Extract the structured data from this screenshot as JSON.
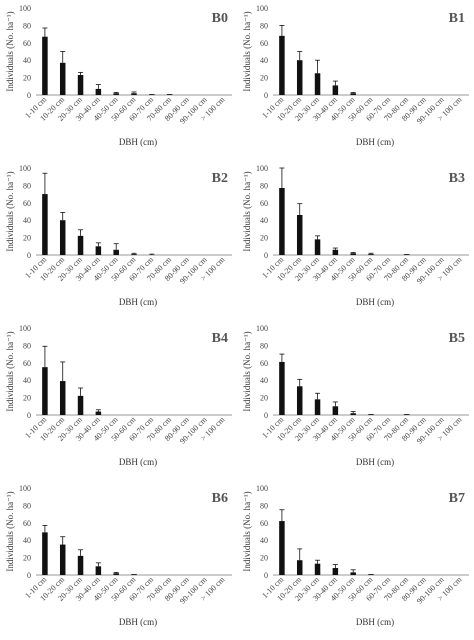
{
  "chart_data": [
    {
      "type": "bar",
      "title": "B0",
      "xlabel": "DBH (cm)",
      "ylabel": "Individuals (No. ha⁻¹)",
      "ylim": [
        0,
        100
      ],
      "yticks": [
        "0",
        "20",
        "40",
        "60",
        "80",
        "100"
      ],
      "categories": [
        "1-10 cm",
        "10-20 cm",
        "20-30 cm",
        "30-40 cm",
        "40-50 cm",
        "50-60 cm",
        "60-70 cm",
        "70-80 cm",
        "80-90 cm",
        "90-100 cm",
        "> 100 cm"
      ],
      "values": [
        67,
        37,
        23,
        7,
        2,
        2,
        1,
        1,
        0,
        0,
        0
      ],
      "errors": [
        10,
        13,
        3,
        5,
        1,
        1.5,
        0,
        0,
        0,
        0,
        0
      ],
      "grid": false,
      "legend": "none"
    },
    {
      "type": "bar",
      "title": "B1",
      "xlabel": "DBH (cm)",
      "ylabel": "Individuals (No. ha⁻¹)",
      "ylim": [
        0,
        100
      ],
      "yticks": [
        "0",
        "20",
        "40",
        "60",
        "80",
        "100"
      ],
      "categories": [
        "1-10 cm",
        "10-20 cm",
        "20-30 cm",
        "30-40 cm",
        "40-50 cm",
        "50-60 cm",
        "60-70 cm",
        "70-80 cm",
        "80-90 cm",
        "90-100 cm",
        "> 100 cm"
      ],
      "values": [
        68,
        40,
        25,
        11,
        2,
        0,
        0,
        0,
        0,
        0,
        0
      ],
      "errors": [
        12,
        10,
        15,
        5,
        1,
        0,
        0,
        0,
        0,
        0,
        0
      ],
      "grid": false,
      "legend": "none"
    },
    {
      "type": "bar",
      "title": "B2",
      "xlabel": "DBH (cm)",
      "ylabel": "Individuals (No. ha⁻¹)",
      "ylim": [
        0,
        100
      ],
      "yticks": [
        "0",
        "20",
        "40",
        "60",
        "80",
        "100"
      ],
      "categories": [
        "1-10 cm",
        "10-20 cm",
        "20-30 cm",
        "30-40 cm",
        "40-50 cm",
        "50-60 cm",
        "60-70 cm",
        "70-80 cm",
        "80-90 cm",
        "90-100 cm",
        "> 100 cm"
      ],
      "values": [
        70,
        40,
        22,
        10,
        6,
        1,
        0,
        0,
        0,
        0,
        0
      ],
      "errors": [
        24,
        9,
        7,
        4,
        7,
        1,
        1,
        0,
        0,
        0,
        0
      ],
      "grid": false,
      "legend": "none"
    },
    {
      "type": "bar",
      "title": "B3",
      "xlabel": "DBH (cm)",
      "ylabel": "Individuals (No. ha⁻¹)",
      "ylim": [
        0,
        100
      ],
      "yticks": [
        "0",
        "20",
        "40",
        "60",
        "80",
        "100"
      ],
      "categories": [
        "1-10 cm",
        "10-20 cm",
        "20-30 cm",
        "30-40 cm",
        "40-50 cm",
        "50-60 cm",
        "60-70 cm",
        "70-80 cm",
        "80-90 cm",
        "90-100 cm",
        "> 100 cm"
      ],
      "values": [
        77,
        46,
        18,
        6,
        2,
        1,
        0,
        1,
        0,
        0,
        0
      ],
      "errors": [
        23,
        13,
        4,
        2,
        1,
        1,
        0,
        0,
        0,
        0,
        0
      ],
      "grid": false,
      "legend": "none"
    },
    {
      "type": "bar",
      "title": "B4",
      "xlabel": "DBH (cm)",
      "ylabel": "Individuals (No. ha⁻¹)",
      "ylim": [
        0,
        100
      ],
      "yticks": [
        "0",
        "20",
        "40",
        "60",
        "80",
        "100"
      ],
      "categories": [
        "1-10 cm",
        "10-20 cm",
        "20-30 cm",
        "30-40 cm",
        "40-50 cm",
        "50-60 cm",
        "60-70 cm",
        "70-80 cm",
        "80-90 cm",
        "90-100 cm",
        "> 100 cm"
      ],
      "values": [
        55,
        39,
        22,
        4,
        0,
        0,
        0,
        0,
        0,
        0,
        0
      ],
      "errors": [
        24,
        22,
        9,
        2,
        0,
        0,
        0,
        0,
        0,
        0,
        0
      ],
      "grid": false,
      "legend": "none"
    },
    {
      "type": "bar",
      "title": "B5",
      "xlabel": "DBH (cm)",
      "ylabel": "Individuals (No. ha⁻¹)",
      "ylim": [
        0,
        100
      ],
      "yticks": [
        "0",
        "20",
        "40",
        "60",
        "80",
        "100"
      ],
      "categories": [
        "1-10 cm",
        "10-20 cm",
        "20-30 cm",
        "30-40 cm",
        "40-50 cm",
        "50-60 cm",
        "60-70 cm",
        "70-80 cm",
        "80-90 cm",
        "90-100 cm",
        "> 100 cm"
      ],
      "values": [
        61,
        33,
        18,
        10,
        2,
        1,
        0,
        1,
        0,
        0,
        0
      ],
      "errors": [
        9,
        8,
        7,
        5,
        2,
        0,
        0,
        0,
        0,
        0,
        0
      ],
      "grid": false,
      "legend": "none"
    },
    {
      "type": "bar",
      "title": "B6",
      "xlabel": "DBH (cm)",
      "ylabel": "Individuals (No. ha⁻¹)",
      "ylim": [
        0,
        100
      ],
      "yticks": [
        "0",
        "20",
        "40",
        "60",
        "80",
        "100"
      ],
      "categories": [
        "1-10 cm",
        "10-20 cm",
        "20-30 cm",
        "30-40 cm",
        "40-50 cm",
        "50-60 cm",
        "60-70 cm",
        "70-80 cm",
        "80-90 cm",
        "90-100 cm",
        "> 100 cm"
      ],
      "values": [
        49,
        35,
        22,
        10,
        2,
        1,
        0,
        0,
        0,
        0,
        0
      ],
      "errors": [
        8,
        9,
        7,
        4,
        1,
        0,
        0,
        0,
        0,
        0,
        0
      ],
      "grid": false,
      "legend": "none"
    },
    {
      "type": "bar",
      "title": "B7",
      "xlabel": "DBH (cm)",
      "ylabel": "Individuals (No. ha⁻¹)",
      "ylim": [
        0,
        100
      ],
      "yticks": [
        "0",
        "20",
        "40",
        "60",
        "80",
        "100"
      ],
      "categories": [
        "1-10 cm",
        "10-20 cm",
        "20-30 cm",
        "30-40 cm",
        "40-50 cm",
        "50-60 cm",
        "60-70 cm",
        "70-80 cm",
        "80-90 cm",
        "90-100 cm",
        "> 100 cm"
      ],
      "values": [
        62,
        17,
        13,
        8,
        3,
        1,
        0,
        0,
        0,
        0,
        0
      ],
      "errors": [
        13,
        13,
        4,
        4,
        3,
        0,
        0,
        0,
        0,
        0,
        0
      ],
      "grid": false,
      "legend": "none"
    }
  ],
  "colors": {
    "bar": "#111111",
    "axis": "#999999",
    "text": "#444444",
    "title": "#555555"
  }
}
